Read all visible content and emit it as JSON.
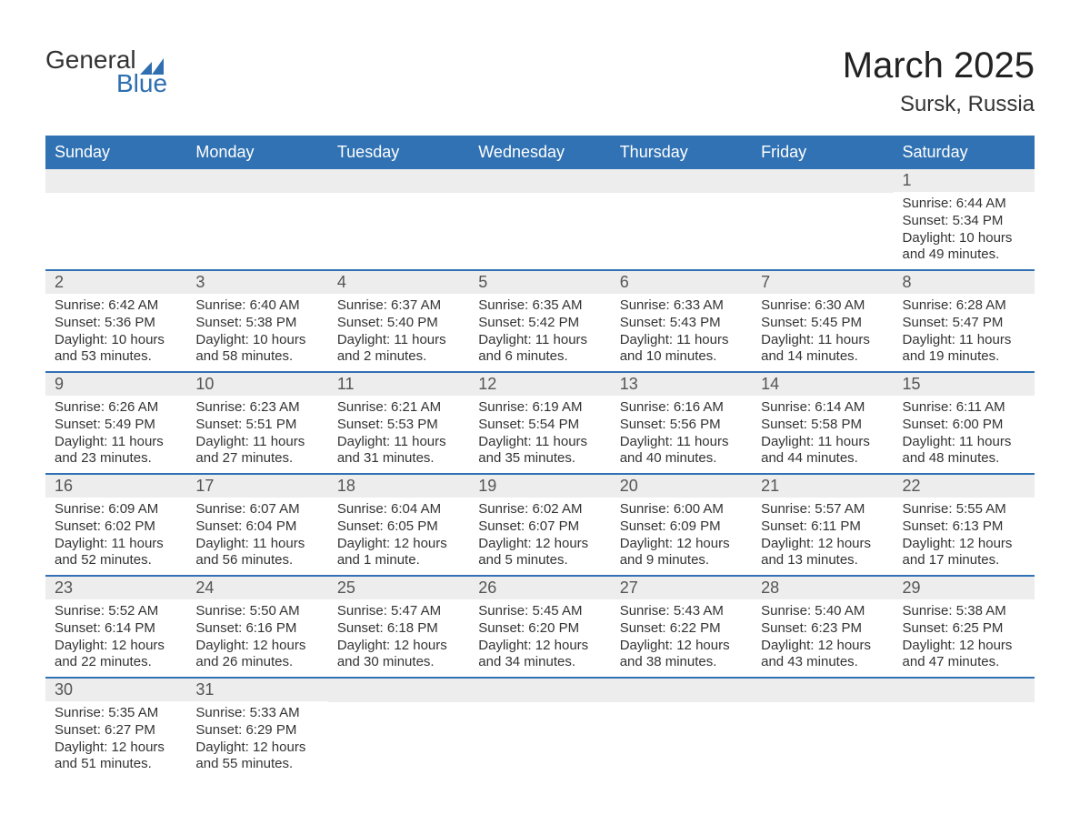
{
  "logo": {
    "text_general": "General",
    "text_blue": "Blue",
    "flag_color": "#2f6fb0",
    "blue_text_color": "#2f6fb0"
  },
  "title": {
    "month": "March 2025",
    "location": "Sursk, Russia"
  },
  "colors": {
    "header_bg": "#3072b3",
    "header_text": "#ffffff",
    "daynum_bg": "#ededed",
    "daynum_text": "#555555",
    "body_text": "#333333",
    "row_divider": "#3072b3",
    "page_bg": "#ffffff"
  },
  "layout": {
    "columns": 7,
    "header_fontsize": 18,
    "daynum_fontsize": 18,
    "body_fontsize": 15,
    "title_fontsize": 40,
    "location_fontsize": 24
  },
  "day_headers": [
    "Sunday",
    "Monday",
    "Tuesday",
    "Wednesday",
    "Thursday",
    "Friday",
    "Saturday"
  ],
  "weeks": [
    [
      {
        "blank": true
      },
      {
        "blank": true
      },
      {
        "blank": true
      },
      {
        "blank": true
      },
      {
        "blank": true
      },
      {
        "blank": true
      },
      {
        "day": "1",
        "sunrise": "Sunrise: 6:44 AM",
        "sunset": "Sunset: 5:34 PM",
        "daylight1": "Daylight: 10 hours",
        "daylight2": "and 49 minutes."
      }
    ],
    [
      {
        "day": "2",
        "sunrise": "Sunrise: 6:42 AM",
        "sunset": "Sunset: 5:36 PM",
        "daylight1": "Daylight: 10 hours",
        "daylight2": "and 53 minutes."
      },
      {
        "day": "3",
        "sunrise": "Sunrise: 6:40 AM",
        "sunset": "Sunset: 5:38 PM",
        "daylight1": "Daylight: 10 hours",
        "daylight2": "and 58 minutes."
      },
      {
        "day": "4",
        "sunrise": "Sunrise: 6:37 AM",
        "sunset": "Sunset: 5:40 PM",
        "daylight1": "Daylight: 11 hours",
        "daylight2": "and 2 minutes."
      },
      {
        "day": "5",
        "sunrise": "Sunrise: 6:35 AM",
        "sunset": "Sunset: 5:42 PM",
        "daylight1": "Daylight: 11 hours",
        "daylight2": "and 6 minutes."
      },
      {
        "day": "6",
        "sunrise": "Sunrise: 6:33 AM",
        "sunset": "Sunset: 5:43 PM",
        "daylight1": "Daylight: 11 hours",
        "daylight2": "and 10 minutes."
      },
      {
        "day": "7",
        "sunrise": "Sunrise: 6:30 AM",
        "sunset": "Sunset: 5:45 PM",
        "daylight1": "Daylight: 11 hours",
        "daylight2": "and 14 minutes."
      },
      {
        "day": "8",
        "sunrise": "Sunrise: 6:28 AM",
        "sunset": "Sunset: 5:47 PM",
        "daylight1": "Daylight: 11 hours",
        "daylight2": "and 19 minutes."
      }
    ],
    [
      {
        "day": "9",
        "sunrise": "Sunrise: 6:26 AM",
        "sunset": "Sunset: 5:49 PM",
        "daylight1": "Daylight: 11 hours",
        "daylight2": "and 23 minutes."
      },
      {
        "day": "10",
        "sunrise": "Sunrise: 6:23 AM",
        "sunset": "Sunset: 5:51 PM",
        "daylight1": "Daylight: 11 hours",
        "daylight2": "and 27 minutes."
      },
      {
        "day": "11",
        "sunrise": "Sunrise: 6:21 AM",
        "sunset": "Sunset: 5:53 PM",
        "daylight1": "Daylight: 11 hours",
        "daylight2": "and 31 minutes."
      },
      {
        "day": "12",
        "sunrise": "Sunrise: 6:19 AM",
        "sunset": "Sunset: 5:54 PM",
        "daylight1": "Daylight: 11 hours",
        "daylight2": "and 35 minutes."
      },
      {
        "day": "13",
        "sunrise": "Sunrise: 6:16 AM",
        "sunset": "Sunset: 5:56 PM",
        "daylight1": "Daylight: 11 hours",
        "daylight2": "and 40 minutes."
      },
      {
        "day": "14",
        "sunrise": "Sunrise: 6:14 AM",
        "sunset": "Sunset: 5:58 PM",
        "daylight1": "Daylight: 11 hours",
        "daylight2": "and 44 minutes."
      },
      {
        "day": "15",
        "sunrise": "Sunrise: 6:11 AM",
        "sunset": "Sunset: 6:00 PM",
        "daylight1": "Daylight: 11 hours",
        "daylight2": "and 48 minutes."
      }
    ],
    [
      {
        "day": "16",
        "sunrise": "Sunrise: 6:09 AM",
        "sunset": "Sunset: 6:02 PM",
        "daylight1": "Daylight: 11 hours",
        "daylight2": "and 52 minutes."
      },
      {
        "day": "17",
        "sunrise": "Sunrise: 6:07 AM",
        "sunset": "Sunset: 6:04 PM",
        "daylight1": "Daylight: 11 hours",
        "daylight2": "and 56 minutes."
      },
      {
        "day": "18",
        "sunrise": "Sunrise: 6:04 AM",
        "sunset": "Sunset: 6:05 PM",
        "daylight1": "Daylight: 12 hours",
        "daylight2": "and 1 minute."
      },
      {
        "day": "19",
        "sunrise": "Sunrise: 6:02 AM",
        "sunset": "Sunset: 6:07 PM",
        "daylight1": "Daylight: 12 hours",
        "daylight2": "and 5 minutes."
      },
      {
        "day": "20",
        "sunrise": "Sunrise: 6:00 AM",
        "sunset": "Sunset: 6:09 PM",
        "daylight1": "Daylight: 12 hours",
        "daylight2": "and 9 minutes."
      },
      {
        "day": "21",
        "sunrise": "Sunrise: 5:57 AM",
        "sunset": "Sunset: 6:11 PM",
        "daylight1": "Daylight: 12 hours",
        "daylight2": "and 13 minutes."
      },
      {
        "day": "22",
        "sunrise": "Sunrise: 5:55 AM",
        "sunset": "Sunset: 6:13 PM",
        "daylight1": "Daylight: 12 hours",
        "daylight2": "and 17 minutes."
      }
    ],
    [
      {
        "day": "23",
        "sunrise": "Sunrise: 5:52 AM",
        "sunset": "Sunset: 6:14 PM",
        "daylight1": "Daylight: 12 hours",
        "daylight2": "and 22 minutes."
      },
      {
        "day": "24",
        "sunrise": "Sunrise: 5:50 AM",
        "sunset": "Sunset: 6:16 PM",
        "daylight1": "Daylight: 12 hours",
        "daylight2": "and 26 minutes."
      },
      {
        "day": "25",
        "sunrise": "Sunrise: 5:47 AM",
        "sunset": "Sunset: 6:18 PM",
        "daylight1": "Daylight: 12 hours",
        "daylight2": "and 30 minutes."
      },
      {
        "day": "26",
        "sunrise": "Sunrise: 5:45 AM",
        "sunset": "Sunset: 6:20 PM",
        "daylight1": "Daylight: 12 hours",
        "daylight2": "and 34 minutes."
      },
      {
        "day": "27",
        "sunrise": "Sunrise: 5:43 AM",
        "sunset": "Sunset: 6:22 PM",
        "daylight1": "Daylight: 12 hours",
        "daylight2": "and 38 minutes."
      },
      {
        "day": "28",
        "sunrise": "Sunrise: 5:40 AM",
        "sunset": "Sunset: 6:23 PM",
        "daylight1": "Daylight: 12 hours",
        "daylight2": "and 43 minutes."
      },
      {
        "day": "29",
        "sunrise": "Sunrise: 5:38 AM",
        "sunset": "Sunset: 6:25 PM",
        "daylight1": "Daylight: 12 hours",
        "daylight2": "and 47 minutes."
      }
    ],
    [
      {
        "day": "30",
        "sunrise": "Sunrise: 5:35 AM",
        "sunset": "Sunset: 6:27 PM",
        "daylight1": "Daylight: 12 hours",
        "daylight2": "and 51 minutes."
      },
      {
        "day": "31",
        "sunrise": "Sunrise: 5:33 AM",
        "sunset": "Sunset: 6:29 PM",
        "daylight1": "Daylight: 12 hours",
        "daylight2": "and 55 minutes."
      },
      {
        "blank": true
      },
      {
        "blank": true
      },
      {
        "blank": true
      },
      {
        "blank": true
      },
      {
        "blank": true
      }
    ]
  ]
}
